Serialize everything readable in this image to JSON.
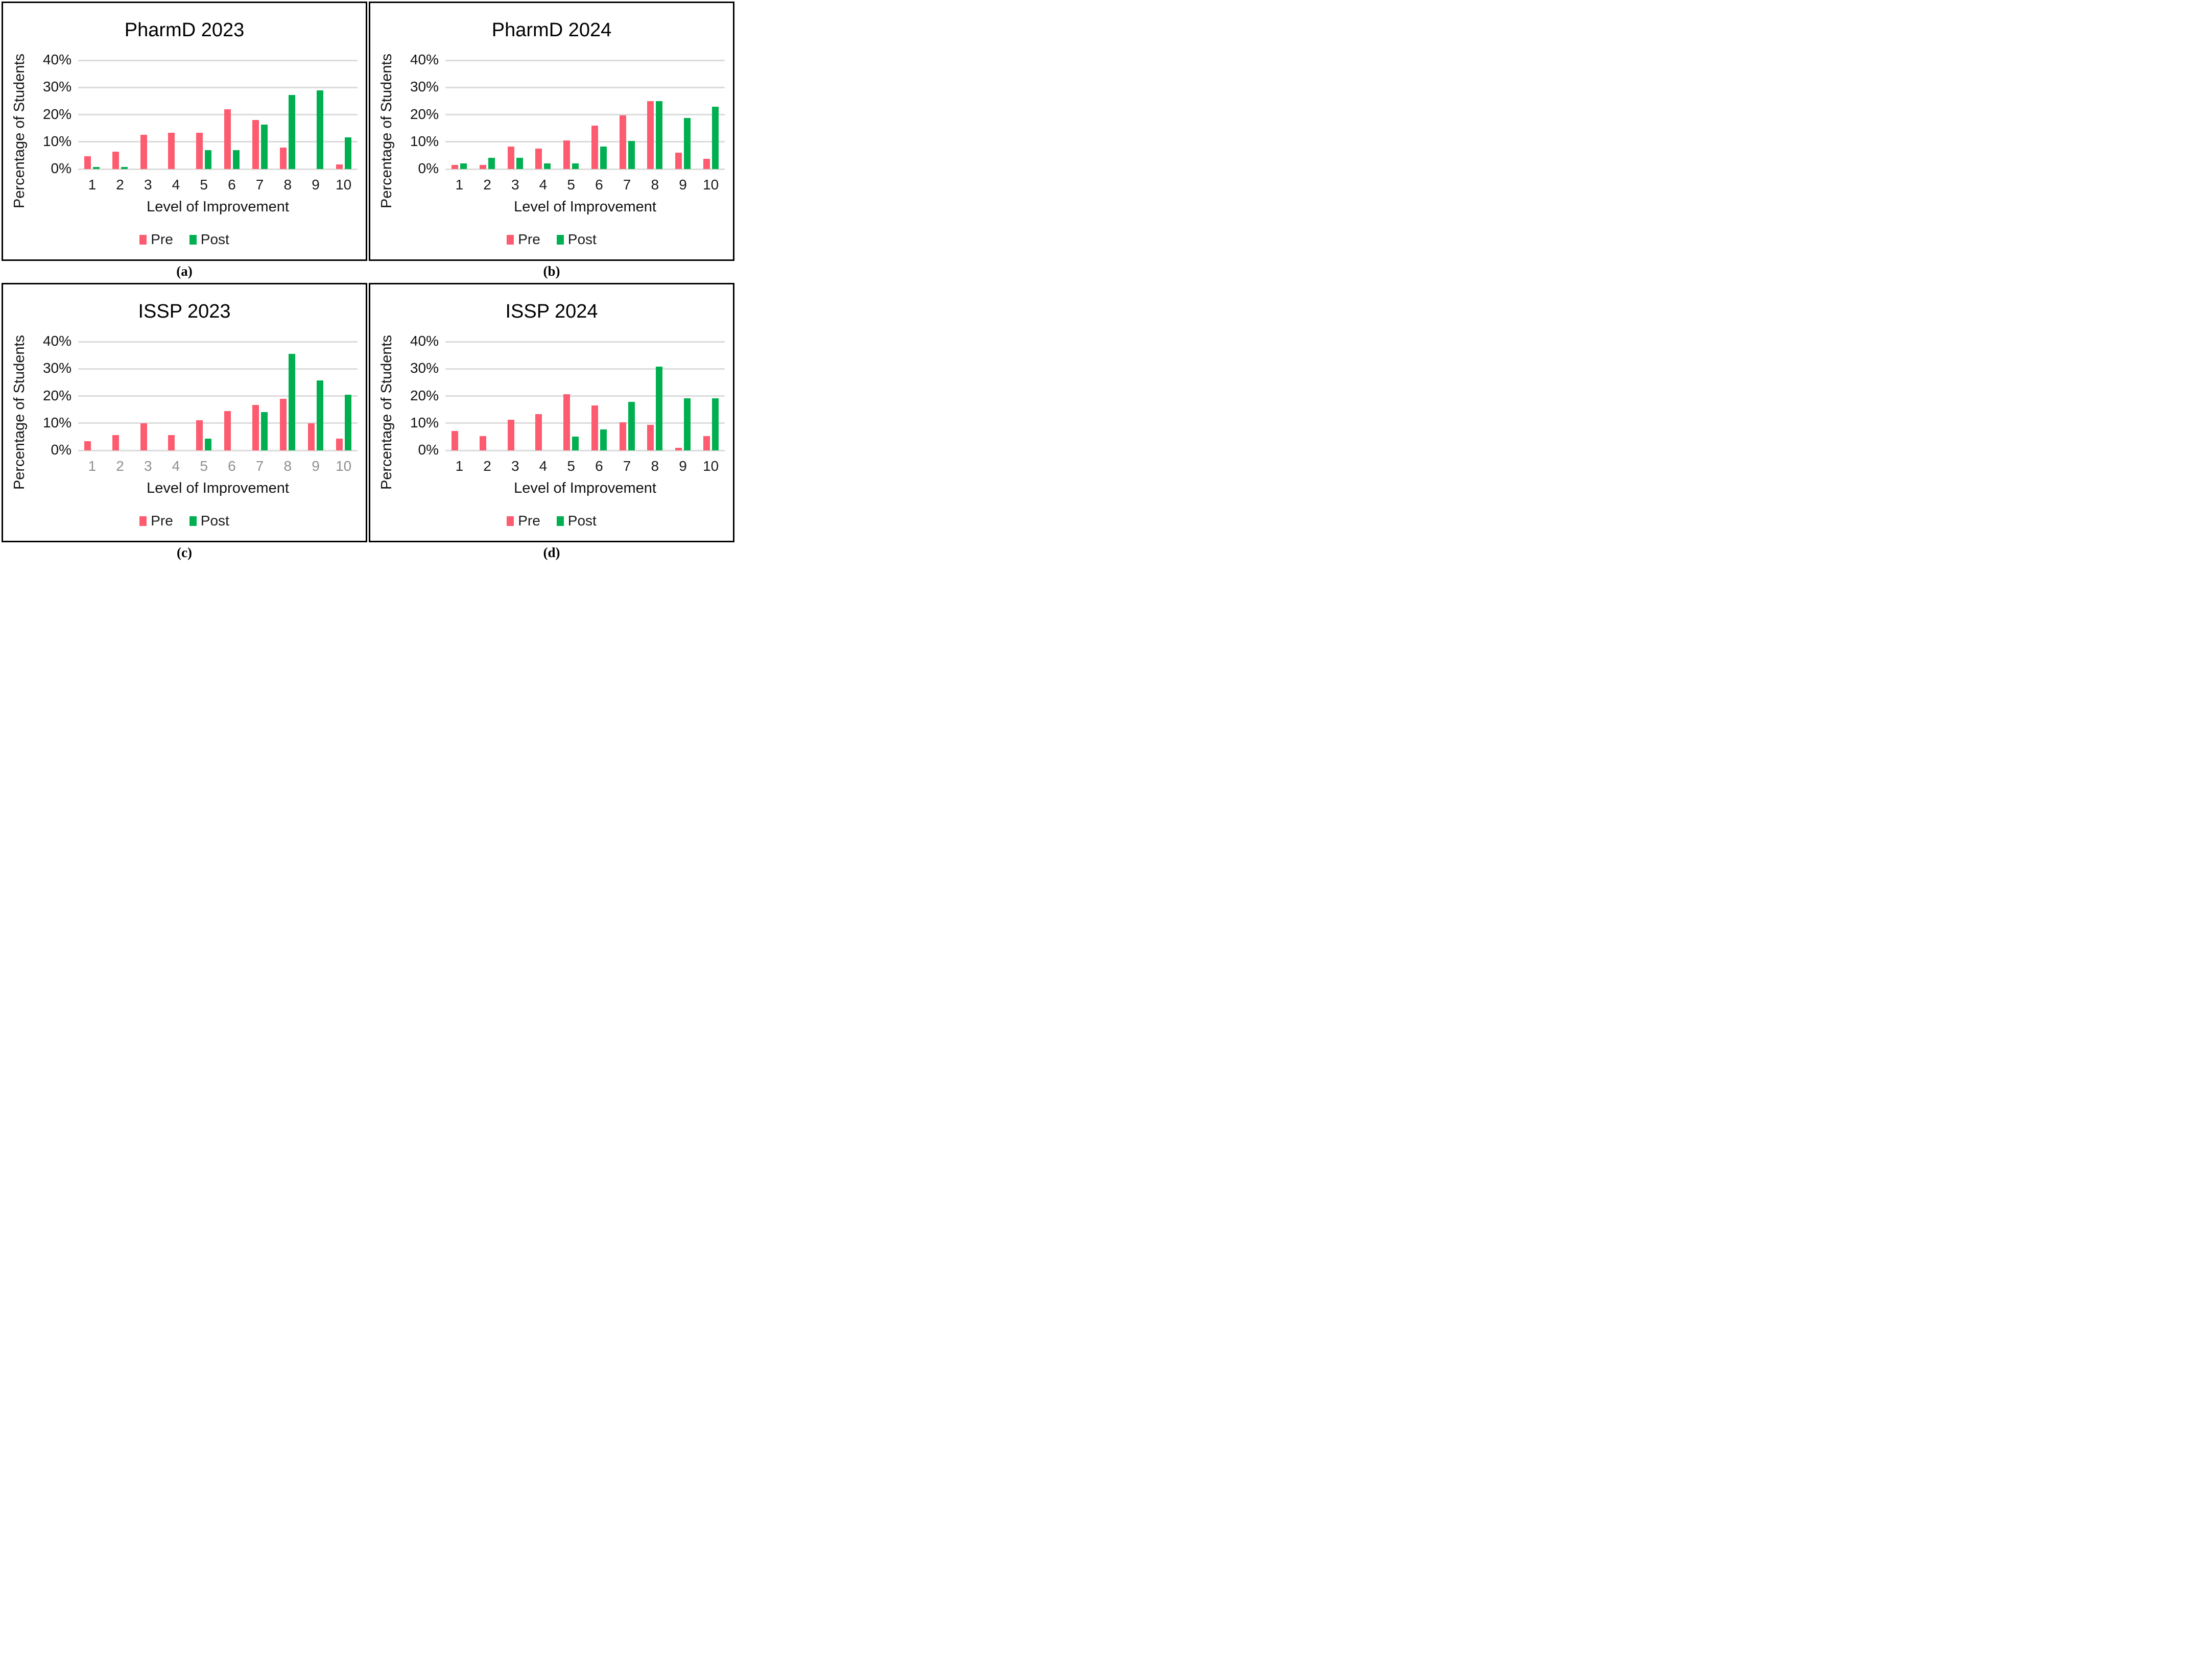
{
  "figure": {
    "background": "#FFFFFF",
    "panel_border_color": "#000000",
    "colors": {
      "pre": "#FD5B6F",
      "post": "#00B050",
      "gridline": "#DBDBDB",
      "text": "#111111",
      "muted_tick": "#8F8F8F"
    }
  },
  "chart_data": [
    {
      "id": "pharmd-2023",
      "type": "bar",
      "title": "PharmD 2023",
      "caption": "(a)",
      "xlabel": "Level of Improvement",
      "ylabel": "Percentage of Students",
      "ylim": [
        0,
        40
      ],
      "y_ticks": [
        "0%",
        "10%",
        "20%",
        "30%",
        "40%"
      ],
      "grid": true,
      "legend_position": "bottom",
      "x_tick_color": "#1A1A1A",
      "categories": [
        "1",
        "2",
        "3",
        "4",
        "5",
        "6",
        "7",
        "8",
        "9",
        "10"
      ],
      "series": [
        {
          "name": "Pre",
          "color": "#FD5B6F",
          "values": [
            4.7,
            6.3,
            12.6,
            13.4,
            13.4,
            22.0,
            18.1,
            7.9,
            0,
            1.6
          ]
        },
        {
          "name": "Post",
          "color": "#00B050",
          "values": [
            0.8,
            0.8,
            0,
            0,
            7.0,
            7.0,
            16.4,
            27.3,
            28.9,
            11.7
          ]
        }
      ]
    },
    {
      "id": "pharmd-2024",
      "type": "bar",
      "title": "PharmD 2024",
      "caption": "(b)",
      "xlabel": "Level of Improvement",
      "ylabel": "Percentage of Students",
      "ylim": [
        0,
        40
      ],
      "y_ticks": [
        "0%",
        "10%",
        "20%",
        "30%",
        "40%"
      ],
      "grid": true,
      "legend_position": "bottom",
      "x_tick_color": "#1A1A1A",
      "categories": [
        "1",
        "2",
        "3",
        "4",
        "5",
        "6",
        "7",
        "8",
        "9",
        "10"
      ],
      "series": [
        {
          "name": "Pre",
          "color": "#FD5B6F",
          "values": [
            1.5,
            1.5,
            8.3,
            7.6,
            10.6,
            15.9,
            19.7,
            25.0,
            6.1,
            3.8
          ]
        },
        {
          "name": "Post",
          "color": "#00B050",
          "values": [
            2.1,
            4.2,
            4.2,
            2.1,
            2.1,
            8.3,
            10.4,
            25.0,
            18.8,
            22.9
          ]
        }
      ]
    },
    {
      "id": "issp-2023",
      "type": "bar",
      "title": "ISSP 2023",
      "caption": "(c)",
      "xlabel": "Level of Improvement",
      "ylabel": "Percentage of Students",
      "ylim": [
        0,
        40
      ],
      "y_ticks": [
        "0%",
        "10%",
        "20%",
        "30%",
        "40%"
      ],
      "grid": true,
      "legend_position": "bottom",
      "x_tick_color": "#8F8F8F",
      "categories": [
        "1",
        "2",
        "3",
        "4",
        "5",
        "6",
        "7",
        "8",
        "9",
        "10"
      ],
      "series": [
        {
          "name": "Pre",
          "color": "#FD5B6F",
          "values": [
            3.3,
            5.6,
            10.0,
            5.6,
            11.1,
            14.4,
            16.7,
            18.9,
            10.0,
            4.4
          ]
        },
        {
          "name": "Post",
          "color": "#00B050",
          "values": [
            0,
            0,
            0,
            0,
            4.3,
            0,
            14.0,
            35.5,
            25.8,
            20.4
          ]
        }
      ]
    },
    {
      "id": "issp-2024",
      "type": "bar",
      "title": "ISSP 2024",
      "caption": "(d)",
      "xlabel": "Level of Improvement",
      "ylabel": "Percentage of Students",
      "ylim": [
        0,
        40
      ],
      "y_ticks": [
        "0%",
        "10%",
        "20%",
        "30%",
        "40%"
      ],
      "grid": true,
      "legend_position": "bottom",
      "x_tick_color": "#1A1A1A",
      "categories": [
        "1",
        "2",
        "3",
        "4",
        "5",
        "6",
        "7",
        "8",
        "9",
        "10"
      ],
      "series": [
        {
          "name": "Pre",
          "color": "#FD5B6F",
          "values": [
            7.2,
            5.2,
            11.3,
            13.4,
            20.6,
            16.5,
            10.3,
            9.3,
            1.0,
            5.2
          ]
        },
        {
          "name": "Post",
          "color": "#00B050",
          "values": [
            0,
            0,
            0,
            0,
            5.1,
            7.7,
            17.9,
            30.8,
            19.2,
            19.2
          ]
        }
      ]
    }
  ]
}
